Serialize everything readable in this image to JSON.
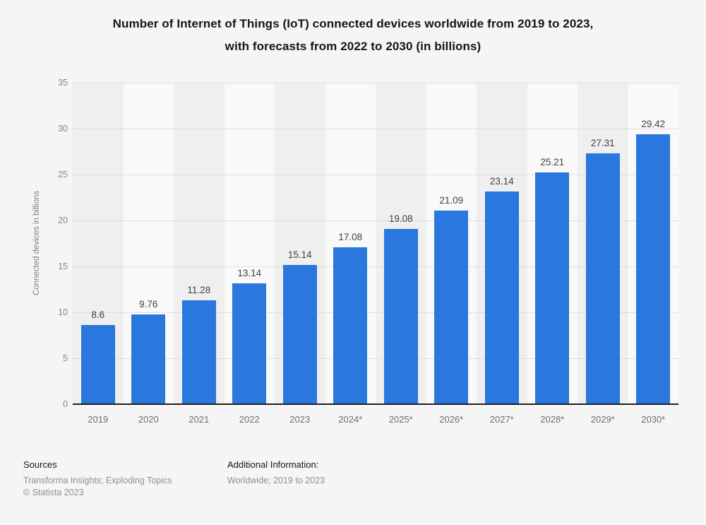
{
  "title": {
    "line1": "Number of Internet of Things (IoT) connected devices worldwide from 2019 to 2023,",
    "line2": "with forecasts from 2022 to 2030 (in billions)"
  },
  "chart_data": {
    "type": "bar",
    "title": "Number of Internet of Things (IoT) connected devices worldwide from 2019 to 2023, with forecasts from 2022 to 2030 (in billions)",
    "categories": [
      "2019",
      "2020",
      "2021",
      "2022",
      "2023",
      "2024*",
      "2025*",
      "2026*",
      "2027*",
      "2028*",
      "2029*",
      "2030*"
    ],
    "values": [
      8.6,
      9.76,
      11.28,
      13.14,
      15.14,
      17.08,
      19.08,
      21.09,
      23.14,
      25.21,
      27.31,
      29.42
    ],
    "value_labels": [
      "8.6",
      "9.76",
      "11.28",
      "13.14",
      "15.14",
      "17.08",
      "19.08",
      "21.09",
      "23.14",
      "25.21",
      "27.31",
      "29.42"
    ],
    "xlabel": "",
    "ylabel": "Connected devices in billions",
    "ylim": [
      0,
      35
    ],
    "yticks": [
      0,
      5,
      10,
      15,
      20,
      25,
      30,
      35
    ],
    "grid": "horizontal-dotted",
    "legend": "none",
    "bar_color": "#2a77dd"
  },
  "colors": {
    "bar": "#2a77dd",
    "band_dark": "#efefef",
    "band_light": "#f9f9f9",
    "background": "#f5f5f6",
    "axis_line": "#1f1f1f",
    "gridline": "#c9c9c9"
  },
  "footer": {
    "sources_label": "Sources",
    "sources_value": "Transforma Insights; Exploding Topics",
    "copyright": "© Statista 2023",
    "additional_label": "Additional Information:",
    "additional_value": "Worldwide; 2019 to 2023"
  }
}
